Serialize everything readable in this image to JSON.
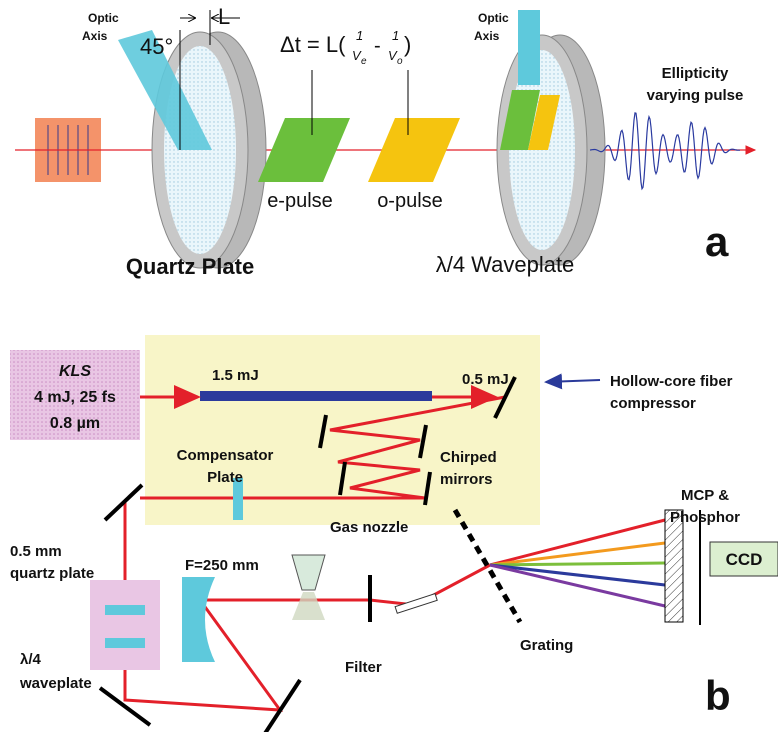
{
  "panel_a": {
    "optic_axis_left": [
      "Optic",
      "Axis"
    ],
    "angle": "45°",
    "length": "L",
    "formula": {
      "prefix": "Δt = L(",
      "num1": "1",
      "den1": "V",
      "sub1": "e",
      "minus": "-",
      "num2": "1",
      "den2": "V",
      "sub2": "o",
      "suffix": ")"
    },
    "optic_axis_right": [
      "Optic",
      "Axis"
    ],
    "pulse_label": [
      "Ellipticity",
      "varying pulse"
    ],
    "e_pulse": "e-pulse",
    "o_pulse": "o-pulse",
    "quartz_plate": "Quartz Plate",
    "waveplate": "λ/4 Waveplate",
    "panel_letter": "a"
  },
  "panel_b": {
    "laser": [
      "KLS",
      "4 mJ, 25 fs",
      "0.8 µm"
    ],
    "input_energy": "1.5 mJ",
    "output_energy": "0.5 mJ",
    "fiber": [
      "Hollow-core fiber",
      "compressor"
    ],
    "compensator": [
      "Compensator",
      "Plate"
    ],
    "chirped": [
      "Chirped",
      "mirrors"
    ],
    "mcp": [
      "MCP &",
      "Phosphor"
    ],
    "ccd": "CCD",
    "quartz": [
      "0.5 mm",
      "quartz plate"
    ],
    "focal": "F=250 mm",
    "nozzle": "Gas nozzle",
    "qwp": [
      "λ/4",
      "waveplate"
    ],
    "filter": "Filter",
    "grating": "Grating",
    "panel_letter": "b"
  }
}
